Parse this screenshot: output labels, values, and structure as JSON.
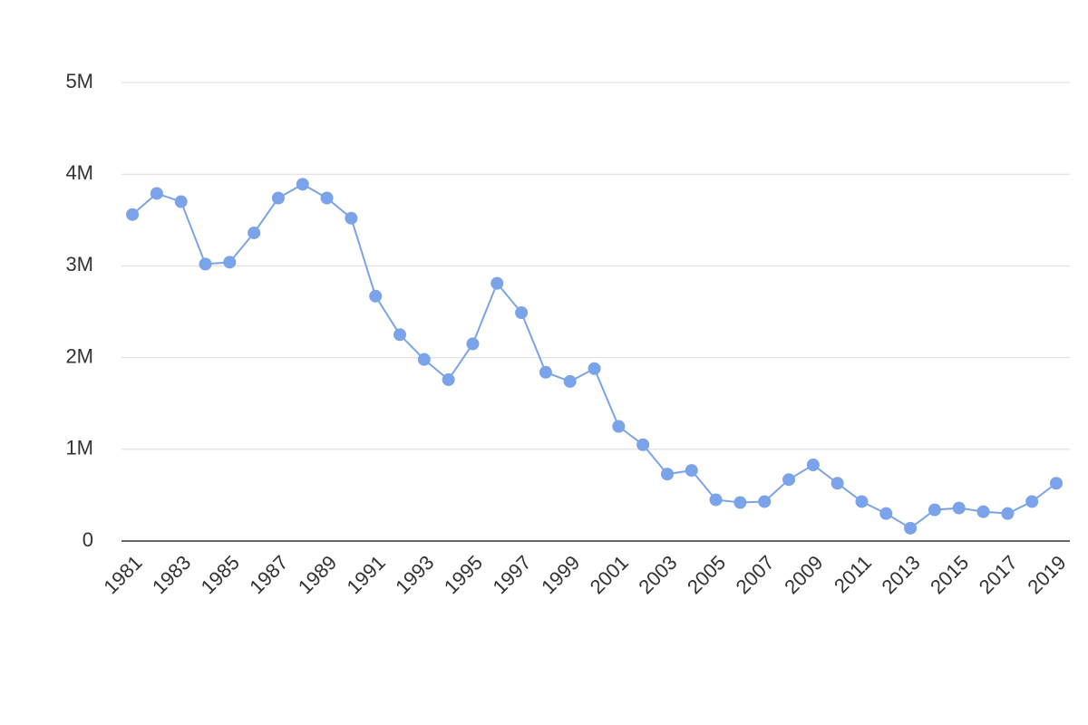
{
  "chart_data": {
    "type": "line",
    "x": [
      1981,
      1982,
      1983,
      1984,
      1985,
      1986,
      1987,
      1988,
      1989,
      1990,
      1991,
      1992,
      1993,
      1994,
      1995,
      1996,
      1997,
      1998,
      1999,
      2000,
      2001,
      2002,
      2003,
      2004,
      2005,
      2006,
      2007,
      2008,
      2009,
      2010,
      2011,
      2012,
      2013,
      2014,
      2015,
      2016,
      2017,
      2018,
      2019
    ],
    "values": [
      3560000,
      3790000,
      3700000,
      3020000,
      3040000,
      3360000,
      3740000,
      3890000,
      3740000,
      3520000,
      2670000,
      2250000,
      1980000,
      1760000,
      2150000,
      2810000,
      2490000,
      1840000,
      1740000,
      1880000,
      1250000,
      1050000,
      730000,
      770000,
      450000,
      420000,
      430000,
      670000,
      830000,
      630000,
      430000,
      300000,
      140000,
      340000,
      360000,
      320000,
      300000,
      430000,
      630000
    ],
    "color": "#7ba3ea",
    "xlim": [
      1980.55,
      2019.56
    ],
    "xticks": [
      1981,
      1983,
      1985,
      1987,
      1989,
      1991,
      1993,
      1995,
      1997,
      1999,
      2001,
      2003,
      2005,
      2007,
      2009,
      2011,
      2013,
      2015,
      2017,
      2019
    ],
    "ylim": [
      0,
      5000000
    ],
    "yticks": [
      0,
      {
        "value": 1000000,
        "label": "1M"
      },
      {
        "value": 2000000,
        "label": "2M"
      },
      {
        "value": 3000000,
        "label": "3M"
      },
      {
        "value": 4000000,
        "label": "4M"
      },
      {
        "value": 5000000,
        "label": "5M"
      }
    ],
    "grid": true
  }
}
